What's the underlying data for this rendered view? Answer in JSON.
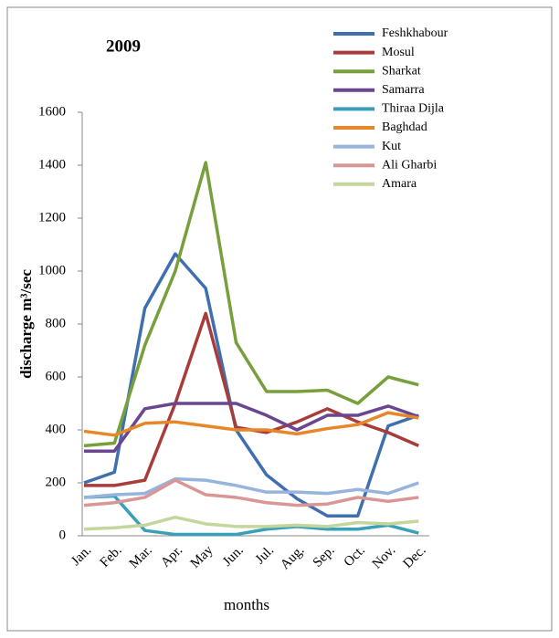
{
  "chart_data": {
    "type": "line",
    "title": "2009",
    "xlabel": "months",
    "ylabel": "discharge m³/sec",
    "categories": [
      "Jan.",
      "Feb.",
      "Mar.",
      "Apr.",
      "May",
      "Jun.",
      "Jul.",
      "Aug.",
      "Sep.",
      "Oct.",
      "Nov.",
      "Dec."
    ],
    "ylim": [
      0,
      1600
    ],
    "yticks": [
      0,
      200,
      400,
      600,
      800,
      1000,
      1200,
      1400,
      1600
    ],
    "grid": false,
    "legend": "top-right",
    "series": [
      {
        "name": "Feshkhabour",
        "color": "#3f6fae",
        "values": [
          200,
          240,
          860,
          1065,
          935,
          400,
          230,
          140,
          75,
          75,
          415,
          455
        ]
      },
      {
        "name": "Mosul",
        "color": "#a73c3a",
        "values": [
          190,
          190,
          210,
          500,
          840,
          410,
          390,
          430,
          480,
          430,
          390,
          340
        ]
      },
      {
        "name": "Sharkat",
        "color": "#77a03c",
        "values": [
          340,
          350,
          720,
          1000,
          1410,
          730,
          545,
          545,
          550,
          500,
          600,
          570
        ]
      },
      {
        "name": "Samarra",
        "color": "#6a4590",
        "values": [
          320,
          320,
          480,
          500,
          500,
          500,
          455,
          400,
          455,
          455,
          490,
          450
        ]
      },
      {
        "name": "Thiraa Dijla",
        "color": "#3aa0b8",
        "values": [
          145,
          150,
          20,
          5,
          5,
          5,
          25,
          35,
          25,
          25,
          40,
          10
        ]
      },
      {
        "name": "Baghdad",
        "color": "#e8862a",
        "values": [
          395,
          380,
          425,
          430,
          415,
          400,
          400,
          385,
          405,
          420,
          465,
          445
        ]
      },
      {
        "name": "Kut",
        "color": "#97b4dc",
        "values": [
          145,
          155,
          160,
          215,
          210,
          190,
          165,
          165,
          160,
          175,
          160,
          200
        ]
      },
      {
        "name": "Ali Gharbi",
        "color": "#d99694",
        "values": [
          115,
          125,
          145,
          210,
          155,
          145,
          125,
          115,
          120,
          145,
          130,
          145
        ]
      },
      {
        "name": "Amara",
        "color": "#c3d69b",
        "values": [
          25,
          30,
          40,
          70,
          45,
          35,
          35,
          40,
          35,
          50,
          45,
          55
        ]
      }
    ]
  }
}
